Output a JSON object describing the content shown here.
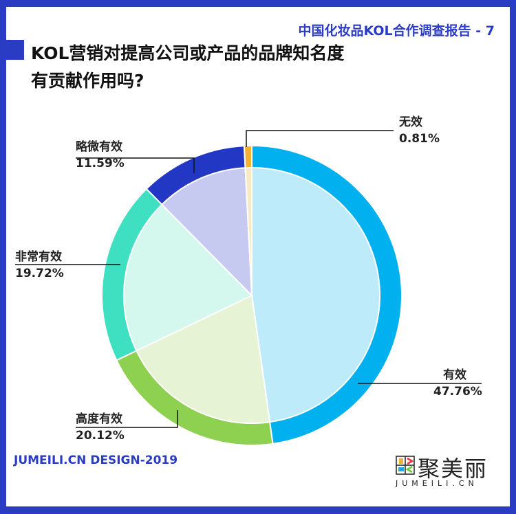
{
  "header": {
    "report_title": "中国化妆品KOL合作调查报告 - 7"
  },
  "title": {
    "line1": "KOL营销对提高公司或产品的品牌知名度",
    "line2": "有贡献作用吗?"
  },
  "footer": {
    "credit": "JUMEILI.CN DESIGN-2019"
  },
  "logo": {
    "name_cn": "聚美丽",
    "name_en": "JUMEILI.CN"
  },
  "chart_data": {
    "type": "pie",
    "categories": [
      "有效",
      "高度有效",
      "非常有效",
      "略微有效",
      "无效"
    ],
    "values": [
      47.76,
      20.12,
      19.72,
      11.59,
      0.81
    ],
    "labels": [
      "47.76%",
      "20.12%",
      "19.72%",
      "11.59%",
      "0.81%"
    ],
    "colors": [
      "#00b0ef",
      "#8ed04f",
      "#3fe0c2",
      "#2238c4",
      "#f2b233"
    ],
    "light_colors": [
      "#bdebfa",
      "#e6f3d4",
      "#d4f8ee",
      "#c6caf0",
      "#fbe9c6"
    ]
  }
}
